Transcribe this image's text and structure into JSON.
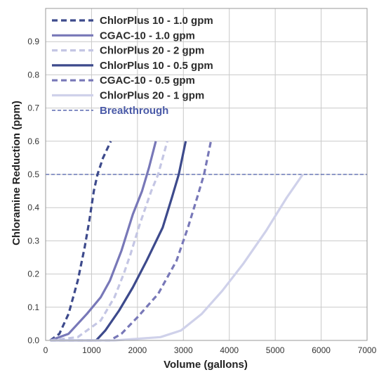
{
  "chart_data": {
    "type": "line",
    "title": "",
    "xlabel": "Volume (gallons)",
    "ylabel": "Chloramine Reduction (ppm)",
    "xlim": [
      0,
      7000
    ],
    "ylim": [
      0,
      1.0
    ],
    "x_ticks": [
      "0",
      "1000",
      "2000",
      "3000",
      "4000",
      "5000",
      "6000",
      "7000"
    ],
    "y_ticks": [
      "0.0",
      "0.1",
      "0.2",
      "0.3",
      "0.4",
      "0.5",
      "0.6",
      "0.7",
      "0.8",
      "0.9"
    ],
    "grid": true,
    "legend_position": "top-left",
    "series": [
      {
        "name": "ChlorPlus 10 - 1.0 gpm",
        "color": "#3d4a8c",
        "style": "dashed",
        "x": [
          100,
          300,
          500,
          700,
          850,
          950,
          1050,
          1130,
          1250,
          1420
        ],
        "y": [
          0.0,
          0.02,
          0.08,
          0.18,
          0.28,
          0.36,
          0.45,
          0.5,
          0.55,
          0.6
        ]
      },
      {
        "name": "CGAC-10 - 1.0 gpm",
        "color": "#7878b8",
        "style": "solid",
        "x": [
          100,
          500,
          900,
          1200,
          1400,
          1650,
          1900,
          2100,
          2250,
          2400
        ],
        "y": [
          0.0,
          0.02,
          0.08,
          0.13,
          0.18,
          0.27,
          0.38,
          0.45,
          0.52,
          0.6
        ]
      },
      {
        "name": "ChlorPlus 20 - 2 gpm",
        "color": "#c4c6e4",
        "style": "dashed",
        "x": [
          100,
          700,
          1200,
          1500,
          1700,
          1850,
          2050,
          2300,
          2450,
          2650
        ],
        "y": [
          0.0,
          0.01,
          0.06,
          0.13,
          0.2,
          0.26,
          0.35,
          0.45,
          0.5,
          0.6
        ]
      },
      {
        "name": "ChlorPlus 10 - 0.5 gpm",
        "color": "#3d4a8c",
        "style": "solid",
        "x": [
          100,
          1100,
          1300,
          1600,
          1900,
          2200,
          2550,
          2750,
          2900,
          3050
        ],
        "y": [
          0.0,
          0.0,
          0.03,
          0.09,
          0.16,
          0.24,
          0.34,
          0.43,
          0.5,
          0.6
        ]
      },
      {
        "name": "CGAC-10 - 0.5 gpm",
        "color": "#7878b8",
        "style": "dashed",
        "x": [
          100,
          1400,
          1650,
          2000,
          2450,
          2850,
          3100,
          3300,
          3450,
          3600
        ],
        "y": [
          0.0,
          0.0,
          0.02,
          0.07,
          0.14,
          0.24,
          0.34,
          0.43,
          0.5,
          0.6
        ]
      },
      {
        "name": "ChlorPlus 20 - 1 gpm",
        "color": "#cfd1ea",
        "style": "solid",
        "x": [
          100,
          1500,
          2500,
          2950,
          3400,
          3850,
          4300,
          4800,
          5250,
          5600
        ],
        "y": [
          0.0,
          0.0,
          0.01,
          0.03,
          0.08,
          0.15,
          0.23,
          0.33,
          0.43,
          0.5
        ]
      }
    ],
    "reference_lines": [
      {
        "name": "Breakthrough",
        "y": 0.5,
        "color": "#4a5aa8",
        "style": "dashed"
      }
    ]
  }
}
